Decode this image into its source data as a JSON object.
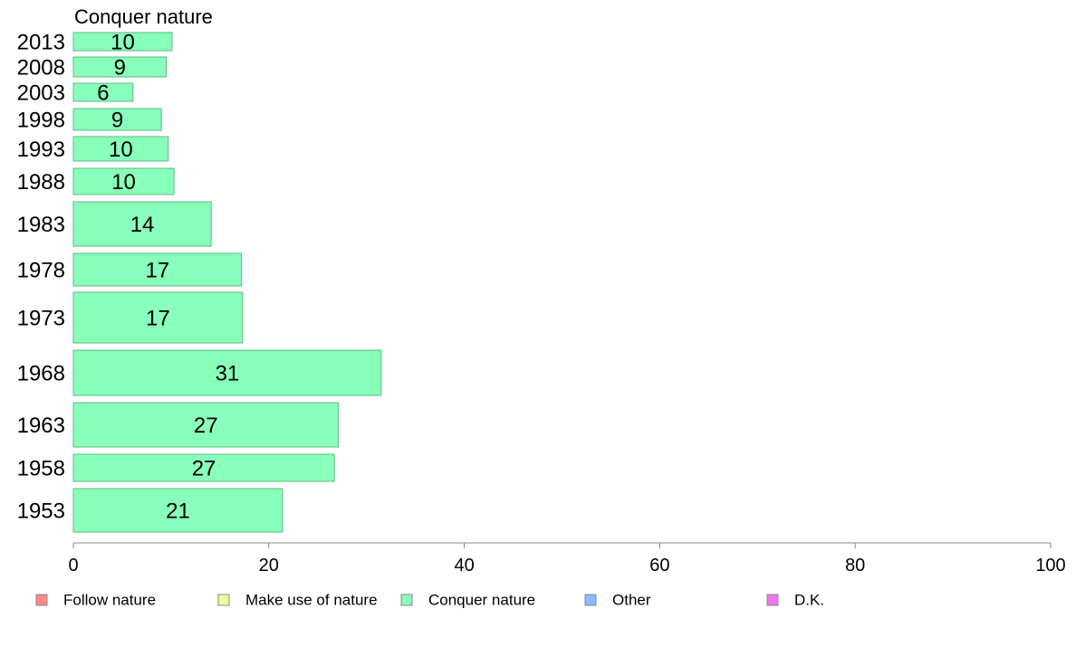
{
  "chart_data": {
    "type": "bar",
    "orientation": "horizontal",
    "title": "Conquer nature",
    "categories": [
      "1953",
      "1958",
      "1963",
      "1968",
      "1973",
      "1978",
      "1983",
      "1988",
      "1993",
      "1998",
      "2003",
      "2008",
      "2013"
    ],
    "series": [
      {
        "name": "Conquer nature",
        "values": [
          21.4,
          26.7,
          27.1,
          31.5,
          17.3,
          17.2,
          14.1,
          10.3,
          9.7,
          9.0,
          6.1,
          9.5,
          10.1
        ],
        "labels": [
          "21",
          "27",
          "27",
          "31",
          "17",
          "17",
          "14",
          "10",
          "10",
          "9",
          "6",
          "9",
          "10"
        ],
        "color": "#88ffbb"
      }
    ],
    "xlim": [
      0,
      100
    ],
    "xticks": [
      "0",
      "20",
      "40",
      "60",
      "80",
      "100"
    ],
    "xtick_values": [
      0,
      20,
      40,
      60,
      80,
      100
    ],
    "grid": false,
    "legend_position": "bottom",
    "legend": [
      {
        "name": "Follow nature",
        "color": "#ff8888"
      },
      {
        "name": "Make use of nature",
        "color": "#eeff99"
      },
      {
        "name": "Conquer nature",
        "color": "#88ffbb"
      },
      {
        "name": "Other",
        "color": "#88bbff"
      },
      {
        "name": "D.K.",
        "color": "#ee77ee"
      }
    ]
  }
}
